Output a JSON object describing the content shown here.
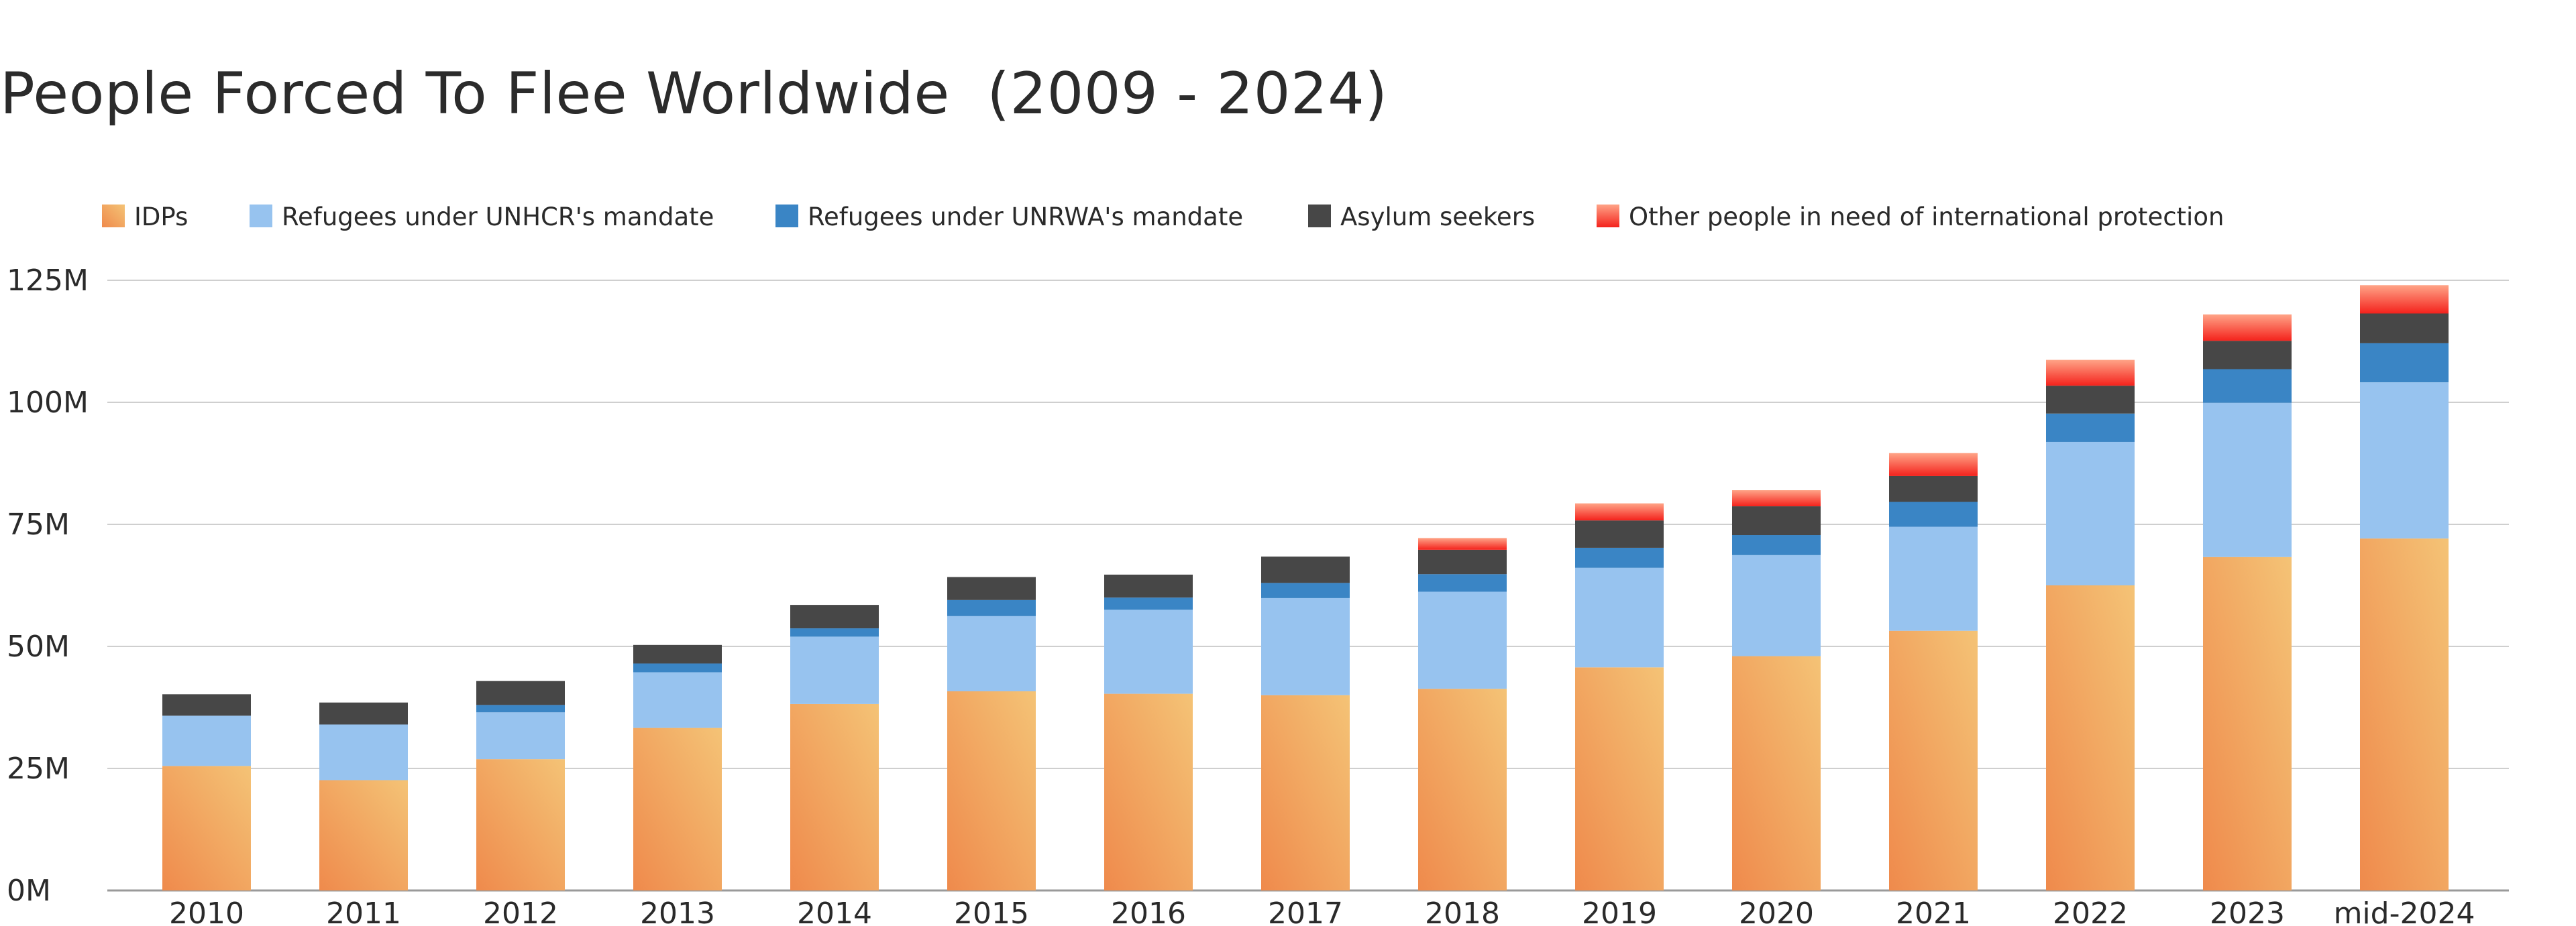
{
  "chart_data": {
    "type": "bar",
    "stacked": true,
    "title": "People Forced To Flee Worldwide  (2009 - 2024)",
    "xlabel": "",
    "ylabel": "",
    "categories": [
      "2010",
      "2011",
      "2012",
      "2013",
      "2014",
      "2015",
      "2016",
      "2017",
      "2018",
      "2019",
      "2020",
      "2021",
      "2022",
      "2023",
      "mid-2024"
    ],
    "y_ticks": [
      "0M",
      "25M",
      "50M",
      "75M",
      "100M",
      "125M"
    ],
    "ylim": [
      0,
      125
    ],
    "unit": "M",
    "grid": true,
    "legend_position": "top-left",
    "series": [
      {
        "name": "IDPs",
        "color": "#ef8a4c",
        "color_light": "#f4c376",
        "values": [
          25.5,
          22.6,
          26.9,
          33.3,
          38.2,
          40.8,
          40.3,
          40.0,
          41.3,
          45.7,
          48.0,
          53.2,
          62.5,
          68.3,
          72.1
        ]
      },
      {
        "name": "Refugees under UNHCR's mandate",
        "color": "#97c3ef",
        "values": [
          10.3,
          11.4,
          9.6,
          11.4,
          13.8,
          15.4,
          17.2,
          19.9,
          19.9,
          20.4,
          20.7,
          21.3,
          29.4,
          31.6,
          32.0
        ]
      },
      {
        "name": "Refugees under UNRWA's mandate",
        "color": "#3a85c5",
        "values": [
          0.0,
          0.0,
          1.5,
          1.8,
          1.7,
          3.3,
          2.5,
          3.1,
          3.6,
          4.1,
          4.1,
          5.1,
          5.8,
          6.9,
          8.0
        ]
      },
      {
        "name": "Asylum seekers",
        "color": "#474747",
        "values": [
          4.4,
          4.5,
          4.9,
          3.8,
          4.8,
          4.7,
          4.7,
          5.4,
          5.0,
          5.6,
          5.9,
          5.3,
          5.7,
          5.8,
          6.1
        ]
      },
      {
        "name": "Other people in need of international protection",
        "color": "#f4221c",
        "color_light": "#ffa487",
        "values": [
          0.0,
          0.0,
          0.0,
          0.0,
          0.0,
          0.0,
          0.0,
          0.0,
          2.4,
          3.5,
          3.3,
          4.7,
          5.3,
          5.4,
          5.8
        ]
      }
    ]
  }
}
